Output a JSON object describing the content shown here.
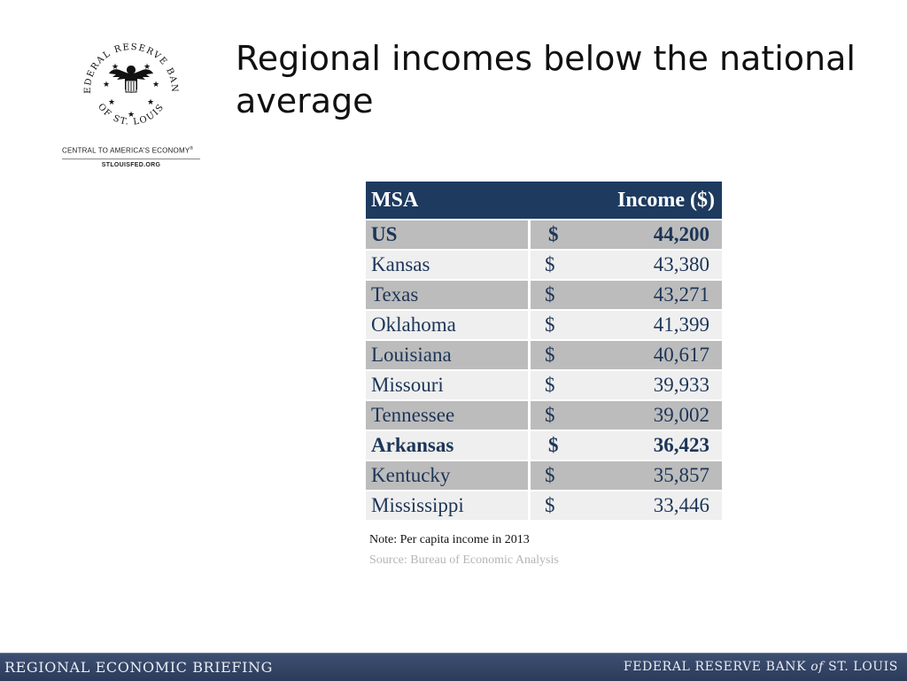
{
  "logo": {
    "seal_text_top": "FEDERAL RESERVE BANK",
    "seal_text_bottom": "OF ST. LOUIS",
    "tagline": "CENTRAL TO AMERICA'S ECONOMY",
    "tagline_mark": "®",
    "website": "STLOUISFED.ORG",
    "icon": "eagle-seal-icon"
  },
  "title": "Regional incomes below the national average",
  "table": {
    "headers": {
      "msa": "MSA",
      "income": "Income ($)"
    },
    "currency_symbol": "$",
    "rows": [
      {
        "msa": "US",
        "income": "44,200",
        "emphasis": true
      },
      {
        "msa": "Kansas",
        "income": "43,380",
        "emphasis": false
      },
      {
        "msa": "Texas",
        "income": "43,271",
        "emphasis": false
      },
      {
        "msa": "Oklahoma",
        "income": "41,399",
        "emphasis": false
      },
      {
        "msa": "Louisiana",
        "income": "40,617",
        "emphasis": false
      },
      {
        "msa": "Missouri",
        "income": "39,933",
        "emphasis": false
      },
      {
        "msa": "Tennessee",
        "income": "39,002",
        "emphasis": false
      },
      {
        "msa": "Arkansas",
        "income": "36,423",
        "emphasis": true
      },
      {
        "msa": "Kentucky",
        "income": "35,857",
        "emphasis": false
      },
      {
        "msa": "Mississippi",
        "income": "33,446",
        "emphasis": false
      }
    ]
  },
  "note": "Note: Per capita income in 2013",
  "source": "Source: Bureau of Economic Analysis",
  "footer": {
    "left": "REGIONAL ECONOMIC BRIEFING",
    "right_pre": "FEDERAL RESERVE BANK",
    "right_of": "of",
    "right_post": "ST. LOUIS"
  },
  "colors": {
    "header_bg": "#1e3a5f",
    "row_dark": "#bcbcbc",
    "row_light": "#efefef",
    "table_text": "#1d3557",
    "footer_bg": "#34456a"
  }
}
